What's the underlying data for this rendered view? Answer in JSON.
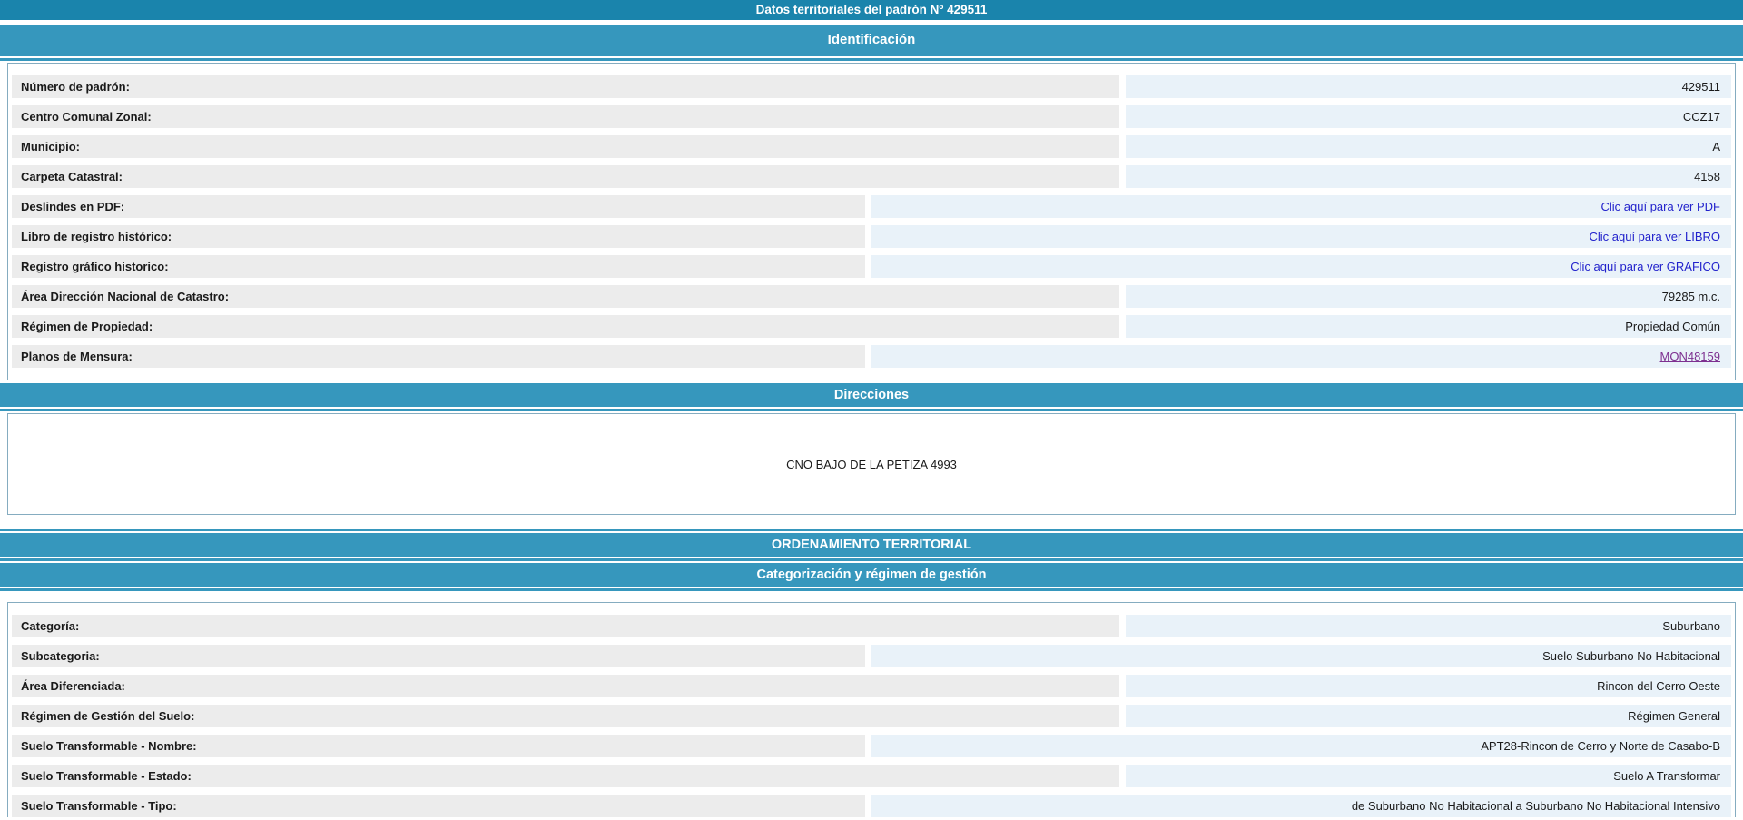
{
  "page": {
    "title": "Datos territoriales del padrón Nº 429511"
  },
  "colors": {
    "title_bar": "#1A84AC",
    "section_bar": "#3697BD",
    "panel_border": "#85ACC0",
    "label_cell_bg": "#ECECEC",
    "value_cell_bg": "#E9F2F9",
    "text": "#1a1a1a",
    "link": "#2222CC",
    "visited_link": "#7D3090"
  },
  "sections": {
    "identificacion": {
      "title": "Identificación",
      "rows": [
        {
          "id": "numero-de-padron",
          "label": "Número de padrón:",
          "value": "429511",
          "type": "text",
          "wide_label": true
        },
        {
          "id": "centro-comunal-zonal",
          "label": "Centro Comunal Zonal:",
          "value": "CCZ17",
          "type": "text",
          "wide_label": true
        },
        {
          "id": "municipio",
          "label": "Municipio:",
          "value": "A",
          "type": "text",
          "wide_label": true
        },
        {
          "id": "carpeta-catastral",
          "label": "Carpeta Catastral:",
          "value": "4158",
          "type": "text",
          "wide_label": true
        },
        {
          "id": "deslindes-pdf",
          "label": "Deslindes en PDF:",
          "value": "Clic aquí para ver PDF",
          "type": "link",
          "wide_label": false
        },
        {
          "id": "libro-registro-historico",
          "label": "Libro de registro histórico:",
          "value": "Clic aquí para ver LIBRO",
          "type": "link",
          "wide_label": false
        },
        {
          "id": "registro-grafico-historico",
          "label": "Registro gráfico historico:",
          "value": "Clic aquí para ver GRAFICO",
          "type": "link",
          "wide_label": false
        },
        {
          "id": "area-dnc",
          "label": "Área Dirección Nacional de Catastro:",
          "value": "79285 m.c.",
          "type": "text",
          "wide_label": true
        },
        {
          "id": "regimen-de-propiedad",
          "label": "Régimen de Propiedad:",
          "value": "Propiedad Común",
          "type": "text",
          "wide_label": true
        },
        {
          "id": "planos-de-mensura",
          "label": "Planos de Mensura:",
          "value": "MON48159",
          "type": "visited-link",
          "wide_label": false
        }
      ]
    },
    "direcciones": {
      "title": "Direcciones",
      "address": "CNO BAJO DE LA PETIZA 4993"
    },
    "ordenamiento": {
      "title": "ORDENAMIENTO TERRITORIAL"
    },
    "categorizacion": {
      "title": "Categorización y régimen de gestión",
      "rows": [
        {
          "id": "categoria",
          "label": "Categoría:",
          "value": "Suburbano",
          "type": "text",
          "wide_label": true
        },
        {
          "id": "subcategoria",
          "label": "Subcategoria:",
          "value": "Suelo Suburbano No Habitacional",
          "type": "text",
          "wide_label": false
        },
        {
          "id": "area-diferenciada",
          "label": "Área Diferenciada:",
          "value": "Rincon del Cerro Oeste",
          "type": "text",
          "wide_label": true
        },
        {
          "id": "regimen-gestion-suelo",
          "label": "Régimen de Gestión del Suelo:",
          "value": "Régimen General",
          "type": "text",
          "wide_label": true
        },
        {
          "id": "suelo-transformable-nombre",
          "label": "Suelo Transformable - Nombre:",
          "value": "APT28-Rincon de Cerro y Norte de Casabo-B",
          "type": "text",
          "wide_label": false
        },
        {
          "id": "suelo-transformable-estado",
          "label": "Suelo Transformable - Estado:",
          "value": "Suelo A Transformar",
          "type": "text",
          "wide_label": true
        },
        {
          "id": "suelo-transformable-tipo",
          "label": "Suelo Transformable - Tipo:",
          "value": "de Suburbano No Habitacional a Suburbano No Habitacional Intensivo",
          "type": "text",
          "wide_label": false
        }
      ]
    }
  }
}
